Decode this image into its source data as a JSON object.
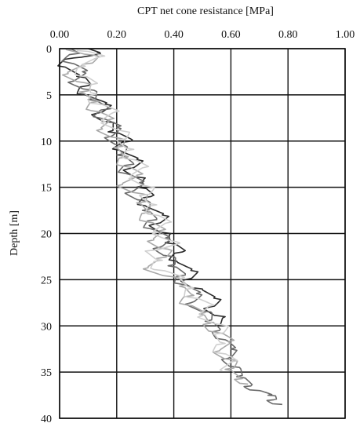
{
  "chart_data": {
    "type": "line",
    "title": "CPT net cone resistance [MPa]",
    "xlabel": "",
    "ylabel": "Depth [m]",
    "xlim": [
      0,
      1.0
    ],
    "ylim": [
      40,
      0
    ],
    "x_axis_position": "top",
    "y_axis_inverted": true,
    "grid": true,
    "legend": "none",
    "x_ticks": [
      "0.00",
      "0.20",
      "0.40",
      "0.60",
      "0.80",
      "1.00"
    ],
    "y_ticks": [
      "0",
      "5",
      "10",
      "15",
      "20",
      "25",
      "30",
      "35",
      "40"
    ],
    "series": [
      {
        "color": "#2b2b2b",
        "points": [
          [
            0.1,
            0
          ],
          [
            0.13,
            0.5
          ],
          [
            0.05,
            1.0
          ],
          [
            0.02,
            2.0
          ],
          [
            0.06,
            3.0
          ],
          [
            0.1,
            4.0
          ],
          [
            0.09,
            5.0
          ],
          [
            0.16,
            6.0
          ],
          [
            0.13,
            7.0
          ],
          [
            0.19,
            8.0
          ],
          [
            0.17,
            9.0
          ],
          [
            0.25,
            10.0
          ],
          [
            0.21,
            11.0
          ],
          [
            0.27,
            12.0
          ],
          [
            0.24,
            13.0
          ],
          [
            0.3,
            14.0
          ],
          [
            0.27,
            15.0
          ],
          [
            0.32,
            16.0
          ],
          [
            0.3,
            17.0
          ],
          [
            0.36,
            18.0
          ],
          [
            0.33,
            19.0
          ],
          [
            0.39,
            20.0
          ],
          [
            0.37,
            21.0
          ],
          [
            0.43,
            22.0
          ],
          [
            0.41,
            23.0
          ],
          [
            0.46,
            24.0
          ],
          [
            0.44,
            25.0
          ],
          [
            0.5,
            26.0
          ],
          [
            0.54,
            27.0
          ],
          [
            0.52,
            28.0
          ],
          [
            0.58,
            29.0
          ],
          [
            0.55,
            30.0
          ]
        ]
      },
      {
        "color": "#6a6a6a",
        "points": [
          [
            0.02,
            0
          ],
          [
            0.07,
            0.5
          ],
          [
            0.03,
            1.5
          ],
          [
            0.08,
            2.5
          ],
          [
            0.05,
            3.5
          ],
          [
            0.12,
            4.5
          ],
          [
            0.1,
            5.5
          ],
          [
            0.18,
            6.5
          ],
          [
            0.14,
            7.5
          ],
          [
            0.2,
            8.5
          ],
          [
            0.18,
            9.5
          ],
          [
            0.23,
            10.5
          ],
          [
            0.2,
            11.5
          ],
          [
            0.26,
            12.5
          ],
          [
            0.23,
            13.5
          ],
          [
            0.28,
            14.5
          ],
          [
            0.25,
            15.5
          ],
          [
            0.31,
            16.5
          ],
          [
            0.29,
            17.5
          ],
          [
            0.34,
            18.5
          ],
          [
            0.32,
            19.5
          ],
          [
            0.37,
            20.5
          ],
          [
            0.35,
            21.5
          ],
          [
            0.4,
            22.5
          ],
          [
            0.38,
            23.5
          ],
          [
            0.44,
            24.5
          ],
          [
            0.43,
            25.5
          ],
          [
            0.48,
            26.5
          ],
          [
            0.46,
            27.5
          ],
          [
            0.53,
            28.5
          ],
          [
            0.51,
            29.5
          ],
          [
            0.56,
            30.5
          ],
          [
            0.58,
            31.5
          ],
          [
            0.6,
            32.5
          ],
          [
            0.59,
            33.5
          ],
          [
            0.63,
            34.5
          ],
          [
            0.62,
            35.5
          ],
          [
            0.67,
            36.5
          ],
          [
            0.7,
            37.0
          ],
          [
            0.73,
            37.5
          ],
          [
            0.75,
            38.0
          ],
          [
            0.78,
            38.5
          ]
        ]
      },
      {
        "color": "#a8a8a8",
        "points": [
          [
            0.04,
            0
          ],
          [
            0.12,
            0.7
          ],
          [
            0.08,
            1.7
          ],
          [
            0.03,
            2.7
          ],
          [
            0.09,
            3.7
          ],
          [
            0.07,
            4.7
          ],
          [
            0.14,
            5.7
          ],
          [
            0.11,
            6.7
          ],
          [
            0.17,
            7.7
          ],
          [
            0.15,
            8.7
          ],
          [
            0.21,
            9.7
          ],
          [
            0.19,
            10.7
          ],
          [
            0.24,
            11.7
          ],
          [
            0.22,
            12.7
          ],
          [
            0.27,
            13.7
          ],
          [
            0.22,
            14.7
          ],
          [
            0.29,
            15.7
          ],
          [
            0.27,
            16.7
          ],
          [
            0.32,
            17.7
          ],
          [
            0.3,
            18.7
          ],
          [
            0.35,
            19.7
          ],
          [
            0.33,
            20.7
          ],
          [
            0.38,
            21.7
          ],
          [
            0.34,
            22.7
          ],
          [
            0.31,
            23.7
          ],
          [
            0.4,
            24.7
          ],
          [
            0.42,
            25.7
          ],
          [
            0.47,
            26.7
          ],
          [
            0.44,
            27.7
          ],
          [
            0.49,
            28.7
          ],
          [
            0.53,
            29.7
          ],
          [
            0.55,
            30.7
          ],
          [
            0.59,
            31.7
          ],
          [
            0.56,
            32.7
          ],
          [
            0.61,
            33.7
          ],
          [
            0.58,
            34.7
          ],
          [
            0.64,
            35.7
          ],
          [
            0.66,
            36.3
          ]
        ]
      },
      {
        "color": "#cfcfcf",
        "points": [
          [
            0.06,
            0.2
          ],
          [
            0.14,
            0.9
          ],
          [
            0.09,
            1.9
          ],
          [
            0.06,
            2.9
          ],
          [
            0.11,
            3.9
          ],
          [
            0.13,
            4.9
          ],
          [
            0.11,
            5.9
          ],
          [
            0.19,
            6.9
          ],
          [
            0.16,
            7.9
          ],
          [
            0.22,
            8.9
          ],
          [
            0.2,
            9.9
          ],
          [
            0.26,
            10.9
          ],
          [
            0.23,
            11.9
          ],
          [
            0.29,
            12.9
          ],
          [
            0.26,
            13.9
          ],
          [
            0.31,
            14.9
          ],
          [
            0.28,
            15.9
          ],
          [
            0.34,
            16.9
          ],
          [
            0.31,
            17.9
          ],
          [
            0.37,
            18.9
          ],
          [
            0.34,
            19.9
          ],
          [
            0.41,
            20.9
          ],
          [
            0.3,
            21.9
          ],
          [
            0.36,
            22.9
          ],
          [
            0.33,
            23.9
          ],
          [
            0.42,
            24.9
          ],
          [
            0.47,
            25.9
          ],
          [
            0.45,
            26.9
          ],
          [
            0.52,
            27.9
          ],
          [
            0.5,
            28.9
          ],
          [
            0.57,
            29.9
          ],
          [
            0.54,
            30.9
          ],
          [
            0.58,
            31.9
          ],
          [
            0.55,
            32.9
          ],
          [
            0.6,
            33.9
          ],
          [
            0.57,
            34.9
          ]
        ]
      }
    ]
  }
}
